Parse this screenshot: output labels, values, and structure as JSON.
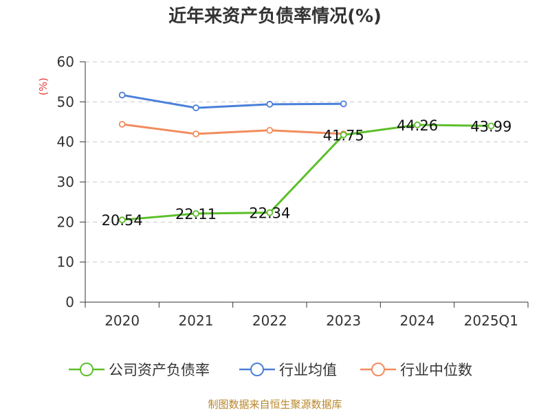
{
  "chart_data": {
    "type": "line",
    "title": "近年来资产负债率情况(%)",
    "ylabel": "(%)",
    "xlabel": "",
    "categories": [
      "2020",
      "2021",
      "2022",
      "2023",
      "2024",
      "2025Q1"
    ],
    "ylim": [
      0,
      60
    ],
    "yticks": [
      0,
      10,
      20,
      30,
      40,
      50,
      60
    ],
    "grid": true,
    "legend_position": "bottom",
    "series": [
      {
        "name": "公司资产负债率",
        "color": "#5cbf2a",
        "values": [
          20.54,
          22.11,
          22.34,
          41.75,
          44.26,
          43.99
        ],
        "show_labels": true
      },
      {
        "name": "行业均值",
        "color": "#4a7fd9",
        "values": [
          51.7,
          48.5,
          49.4,
          49.5,
          null,
          null
        ],
        "show_labels": false
      },
      {
        "name": "行业中位数",
        "color": "#f28c5c",
        "values": [
          44.4,
          42.0,
          42.9,
          42.0,
          null,
          null
        ],
        "show_labels": false
      }
    ],
    "data_labels": [
      "20.54",
      "22.11",
      "22.34",
      "41.75",
      "44.26",
      "43.99"
    ]
  },
  "source": "制图数据来自恒生聚源数据库",
  "colors": {
    "title": "#333333",
    "axis": "#333333",
    "grid": "#c8c8c8",
    "ylabel": "#e53935",
    "source": "#b8862b"
  }
}
